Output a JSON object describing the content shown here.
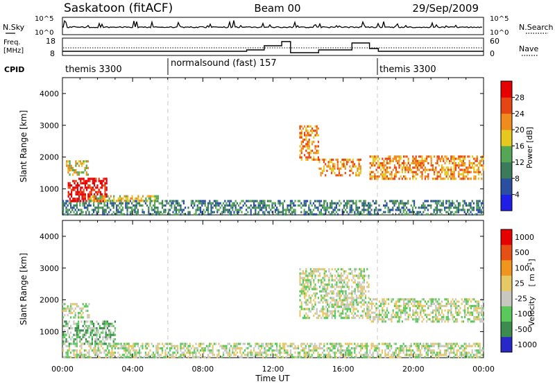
{
  "header": {
    "station": "Saskatoon (fitACF)",
    "beam": "Beam 00",
    "date": "29/Sep/2009"
  },
  "sky_panel": {
    "left_label": "N.Sky",
    "left_ticks": [
      "10^5",
      "10^0"
    ],
    "right_label": "N.Search",
    "right_ticks": [
      "10^5",
      "10^0"
    ]
  },
  "freq_panel": {
    "left_label_1": "Freq.",
    "left_label_2": "[MHz]",
    "left_ticks": [
      "18",
      "8"
    ],
    "right_label": "Nave",
    "right_ticks": [
      "60",
      "0"
    ]
  },
  "cpid": {
    "label": "CPID",
    "segments": [
      {
        "name": "themis 3300",
        "start_h": 0
      },
      {
        "name": "normalsound (fast) 157",
        "start_h": 6
      },
      {
        "name": "themis 3300",
        "start_h": 18
      }
    ]
  },
  "chart_data": [
    {
      "type": "heatmap",
      "title": "",
      "quantity": "Power [dB]",
      "ylabel": "Slant Range [km]",
      "xlabel": "",
      "x_unit": "hours UT",
      "xlim": [
        0,
        24
      ],
      "ylim": [
        180,
        4500
      ],
      "yticks": [
        1000,
        2000,
        3000,
        4000
      ],
      "color_scale": {
        "label": "Power [dB]",
        "ticks": [
          "4",
          "8",
          "12",
          "16",
          "20",
          "24",
          "28"
        ],
        "colors": [
          "#1e1ee6",
          "#2a4fa0",
          "#3b7a5a",
          "#55a655",
          "#e6c81e",
          "#f08c1e",
          "#e64614",
          "#e60000"
        ]
      },
      "echo_regions": [
        {
          "label": "near-range ground scatter",
          "t0": 0.0,
          "t1": 24.0,
          "r0": 200,
          "r1": 650,
          "level_db": 8
        },
        {
          "label": "early strong echo",
          "t0": 0.3,
          "t1": 2.5,
          "r0": 650,
          "r1": 1350,
          "level_db": 28
        },
        {
          "label": "early band",
          "t0": 0.2,
          "t1": 1.5,
          "r0": 1450,
          "r1": 1900,
          "level_db": 16
        },
        {
          "label": "tail",
          "t0": 1.5,
          "t1": 5.5,
          "r0": 650,
          "r1": 800,
          "level_db": 14
        },
        {
          "label": "evening arc",
          "t0": 13.5,
          "t1": 14.6,
          "r0": 1900,
          "r1": 3000,
          "level_db": 18
        },
        {
          "label": "evening band",
          "t0": 14.6,
          "t1": 17.0,
          "r0": 1400,
          "r1": 1950,
          "level_db": 20
        },
        {
          "label": "late band",
          "t0": 17.5,
          "t1": 24.0,
          "r0": 1300,
          "r1": 2050,
          "level_db": 20
        }
      ]
    },
    {
      "type": "heatmap",
      "title": "",
      "quantity": "Velocity [m s^-1]",
      "ylabel": "Slant Range [km]",
      "xlabel": "Time UT",
      "x_unit": "hours UT",
      "xlim": [
        0,
        24
      ],
      "ylim": [
        180,
        4500
      ],
      "yticks": [
        1000,
        2000,
        3000,
        4000
      ],
      "xticks": [
        "00:00",
        "04:00",
        "08:00",
        "12:00",
        "16:00",
        "20:00",
        "00:00"
      ],
      "color_scale": {
        "label": "Velocity",
        "unit_label": "[ m s",
        "unit_exp": "-1",
        "unit_close": "]",
        "ticks": [
          "1000",
          "500",
          "100",
          "25",
          "-25",
          "-100",
          "-500",
          "-1000"
        ],
        "colors": [
          "#2828c8",
          "#3c8c50",
          "#5ac85a",
          "#c8c8c0",
          "#e6c864",
          "#f0961e",
          "#e65014",
          "#e60000"
        ]
      },
      "echo_regions": [
        {
          "label": "ground scatter",
          "t0": 0.0,
          "t1": 24.0,
          "r0": 200,
          "r1": 650,
          "velocity": 50
        },
        {
          "label": "early echo",
          "t0": 0.0,
          "t1": 3.0,
          "r0": 650,
          "r1": 1350,
          "velocity": 100
        },
        {
          "label": "early band",
          "t0": 0.0,
          "t1": 1.5,
          "r0": 1450,
          "r1": 1900,
          "velocity": 0
        },
        {
          "label": "evening",
          "t0": 13.5,
          "t1": 17.5,
          "r0": 1400,
          "r1": 3000,
          "velocity": 0
        },
        {
          "label": "late band",
          "t0": 17.5,
          "t1": 24.0,
          "r0": 1300,
          "r1": 2050,
          "velocity": 0
        }
      ]
    }
  ]
}
